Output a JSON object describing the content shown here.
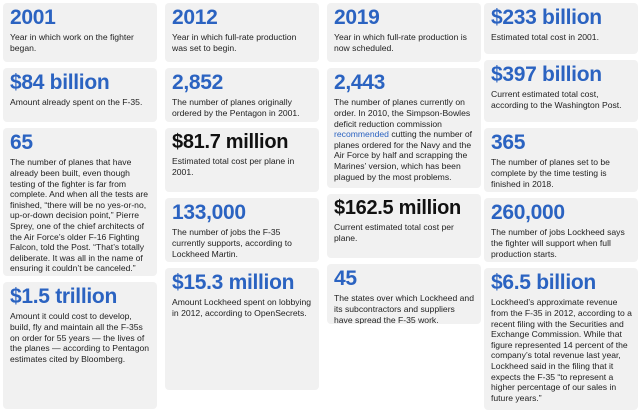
{
  "cards": [
    {
      "value": "2001",
      "desc": "Year in which work on the fighter began."
    },
    {
      "value": "$84 billion",
      "desc": "Amount already spent on the F-35."
    },
    {
      "value": "65",
      "desc": "The number of planes that have already been built, even though testing of the fighter is far from complete. And when all the tests are finished, “there will be no yes-or-no, up-or-down decision point,” Pierre Sprey, one of the chief architects of the Air Force’s older F-16 Fighting Falcon, told the Post. “That’s totally deliberate. It was all in the name of ensuring it couldn’t be canceled.”"
    },
    {
      "value": "$1.5 trillion",
      "desc": "Amount it could cost to develop, build, fly and maintain all the F-35s on order for 55 years — the lives of the planes — according to Pentagon estimates cited by Bloomberg."
    },
    {
      "value": "2012",
      "desc": "Year in which full-rate production was set to begin."
    },
    {
      "value": "2,852",
      "desc": "The number of planes originally ordered by the Pentagon in 2001."
    },
    {
      "value": "$81.7 million",
      "desc": "Estimated total cost per plane in 2001."
    },
    {
      "value": "133,000",
      "desc": "The number of jobs the F-35 currently supports, according to Lockheed Martin."
    },
    {
      "value": "$15.3 million",
      "desc": "Amount Lockheed spent on lobbying in 2012, according to OpenSecrets."
    },
    {
      "value": "2019",
      "desc": "Year in which full-rate production is now scheduled."
    },
    {
      "value": "2,443",
      "desc_before": "The number of planes currently on order. In 2010, the Simpson-Bowles deficit reduction commission ",
      "desc_link": "recommended",
      "desc_after": " cutting the number of planes ordered for the Navy and the Air Force by half and scrapping the Marines’ version, which has been plagued by the most problems."
    },
    {
      "value": "$162.5 million",
      "desc": "Current estimated total cost per plane."
    },
    {
      "value": "45",
      "desc": "The states over which Lockheed and its subcontractors and suppliers have spread the F-35 work."
    },
    {
      "value": "$233 billion",
      "desc": "Estimated total cost in 2001."
    },
    {
      "value": "$397 billion",
      "desc": "Current estimated total cost, according to the Washington Post."
    },
    {
      "value": "365",
      "desc": "The number of planes set to be complete by the time testing is finished in 2018."
    },
    {
      "value": "260,000",
      "desc": "The number of jobs Lockheed says the fighter will support when full production starts."
    },
    {
      "value": "$6.5 billion",
      "desc": "Lockheed’s approximate revenue from the F-35 in 2012, according to a recent filing with the Securities and Exchange Commission. While that figure represented 14 percent of the company’s total revenue last year, Lockheed said in the filing that it expects the F-35 “to represent a higher percentage of our sales in future years.”"
    }
  ],
  "colors": {
    "accent": "#2b63c1",
    "card_bg": "#f1f1f1",
    "text": "#222222",
    "black_value": "#111111"
  }
}
